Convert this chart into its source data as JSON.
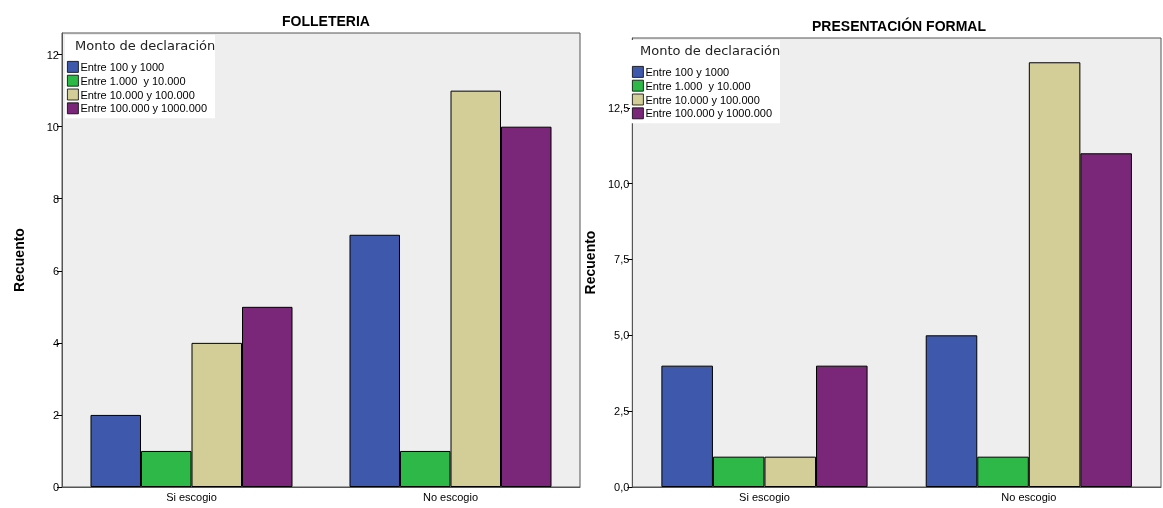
{
  "chart_data": [
    {
      "type": "bar",
      "title": "FOLLETERIA",
      "ylabel": "Recuento",
      "legend_title": "Monto de declaración",
      "legend": "top left",
      "grid": false,
      "categories": [
        "Si escogio",
        "No escogio"
      ],
      "series": [
        {
          "name": "Entre 100 y 1000",
          "color": "#3e58ac",
          "values": [
            2,
            7
          ]
        },
        {
          "name": "Entre 1.000  y 10.000",
          "color": "#2eb848",
          "values": [
            1,
            1
          ]
        },
        {
          "name": "Entre 10.000 y 100.000",
          "color": "#d3ce97",
          "values": [
            4,
            11
          ]
        },
        {
          "name": "Entre 100.000 y 1000.000",
          "color": "#7a2679",
          "values": [
            5,
            10
          ]
        }
      ],
      "ylim": [
        0,
        12.6
      ],
      "yticks": [
        0,
        2,
        4,
        6,
        8,
        10,
        12
      ]
    },
    {
      "type": "bar",
      "title": "PRESENTACIÓN FORMAL",
      "ylabel": "Recuento",
      "legend_title": "Monto de declaración",
      "legend": "top left",
      "grid": false,
      "categories": [
        "Si escogio",
        "No escogio"
      ],
      "series": [
        {
          "name": "Entre 100 y 1000",
          "color": "#3e58ac",
          "values": [
            4,
            5
          ]
        },
        {
          "name": "Entre 1.000  y 10.000",
          "color": "#2eb848",
          "values": [
            1,
            1
          ]
        },
        {
          "name": "Entre 10.000 y 100.000",
          "color": "#d3ce97",
          "values": [
            1,
            14
          ]
        },
        {
          "name": "Entre 100.000 y 1000.000",
          "color": "#7a2679",
          "values": [
            4,
            11
          ]
        }
      ],
      "ylim": [
        0,
        14.8
      ],
      "yticks": [
        {
          "value": 0,
          "label": "0,0"
        },
        {
          "value": 2.5,
          "label": "2,5"
        },
        {
          "value": 5,
          "label": "5,0"
        },
        {
          "value": 7.5,
          "label": "7,5"
        },
        {
          "value": 10,
          "label": "10,0"
        },
        {
          "value": 12.5,
          "label": "12,5"
        }
      ]
    }
  ]
}
